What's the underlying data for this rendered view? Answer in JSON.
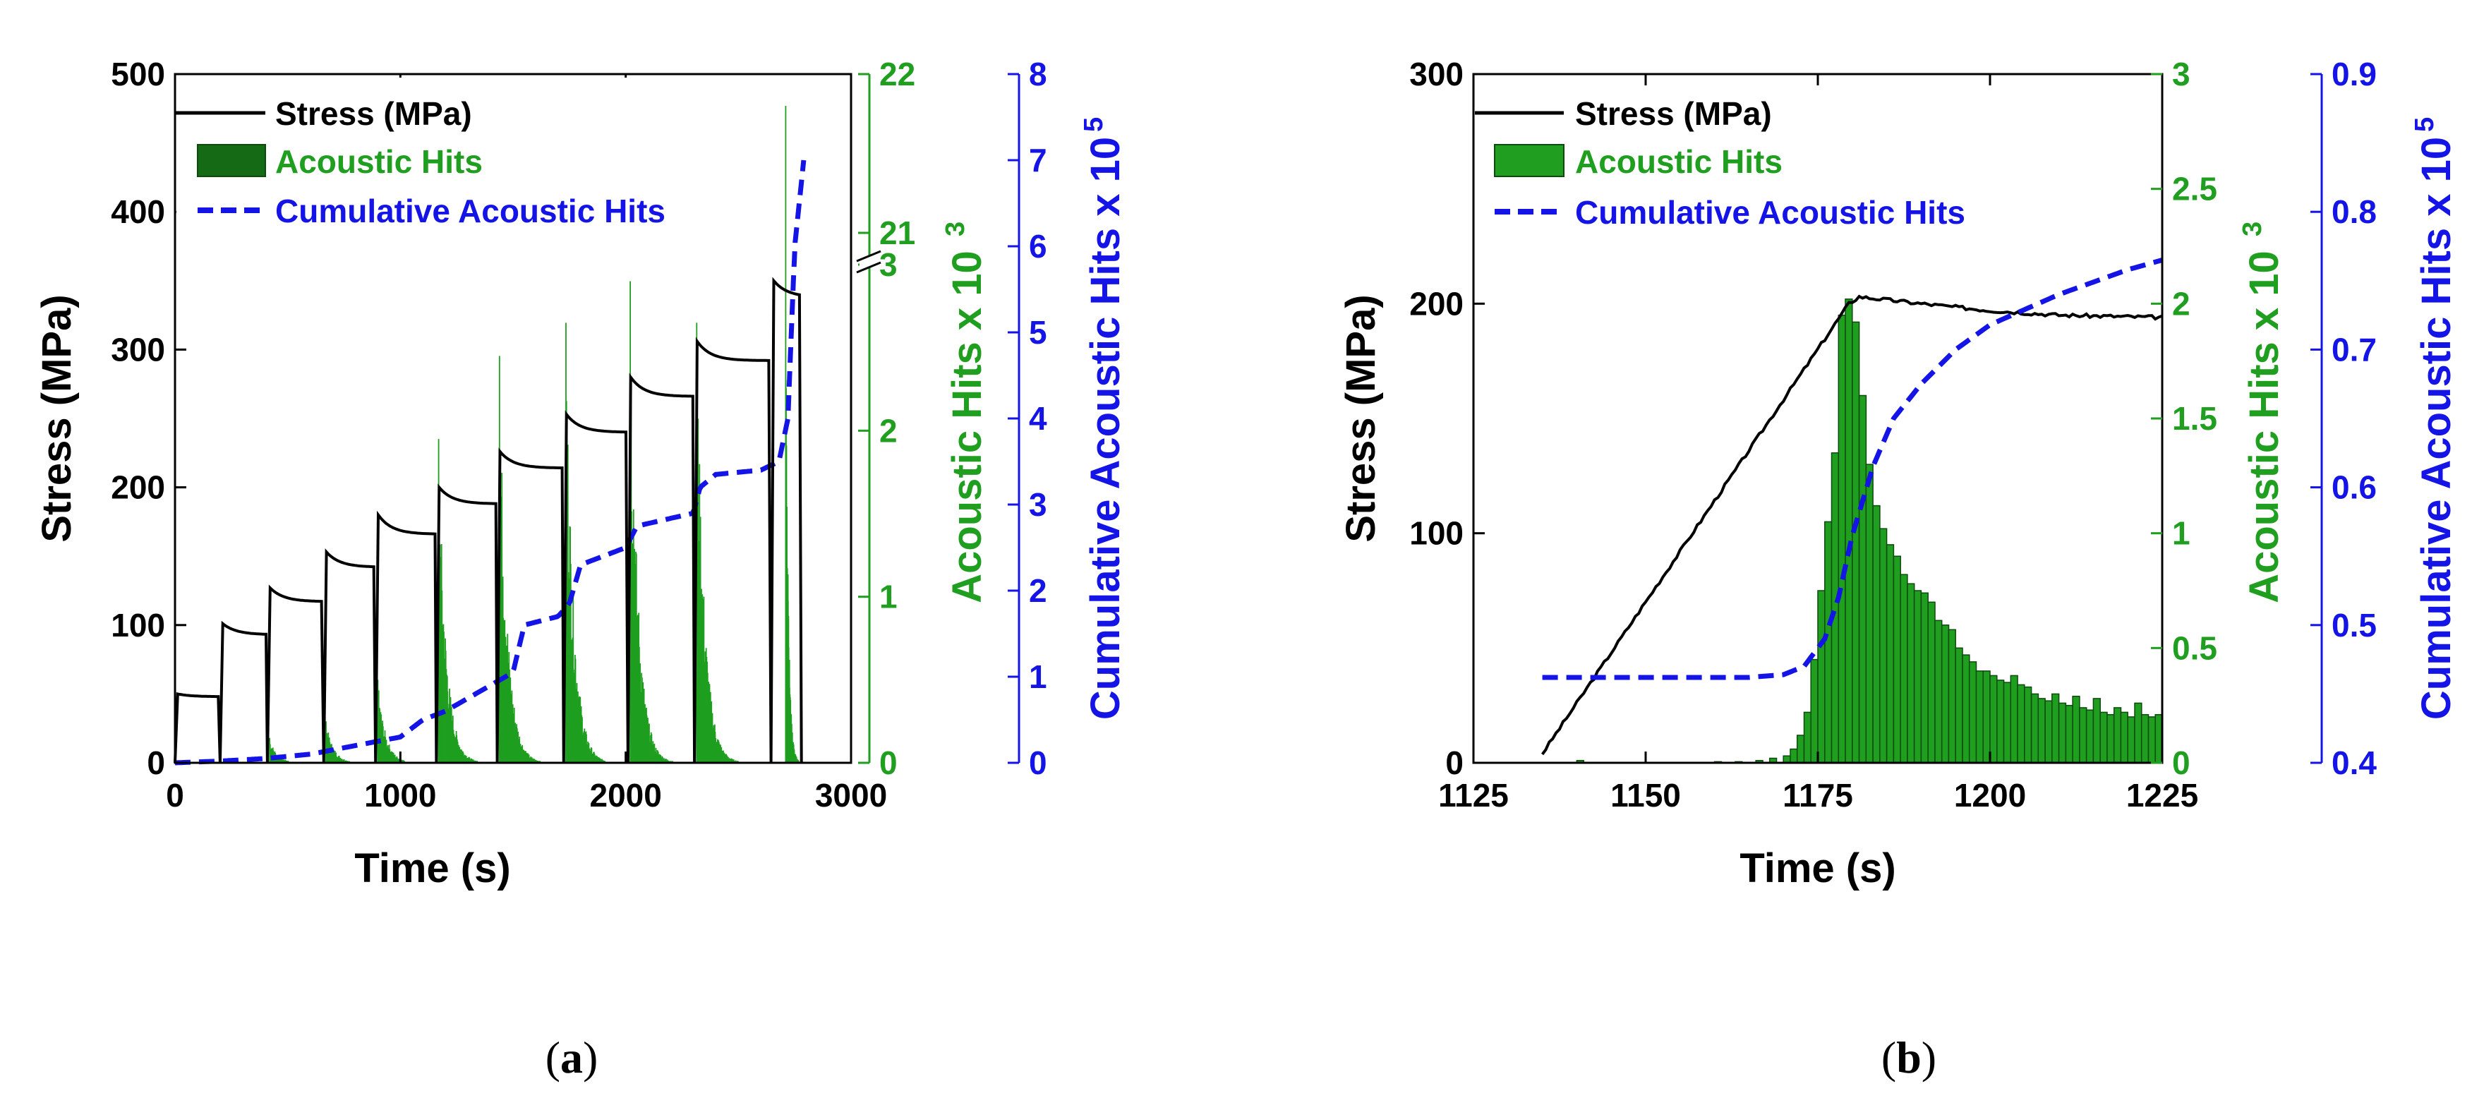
{
  "colors": {
    "stress": "#000000",
    "hits": "#1f9e1f",
    "hits_dark": "#156b15",
    "cumulative": "#1414e6",
    "axis": "#000000"
  },
  "chart_data": [
    {
      "id": "a",
      "type": "line+bar",
      "caption": "a",
      "xlabel": "Time (s)",
      "ylabel_left": "Stress (MPa)",
      "ylabel_mid": "Acoustic Hits x 10",
      "ylabel_mid_exp": "3",
      "ylabel_right": "Cumulative Acoustic Hits x 10",
      "ylabel_right_exp": "5",
      "xlim": [
        0,
        3000
      ],
      "xticks": [
        0,
        1000,
        2000,
        3000
      ],
      "xtick_labels": [
        "0",
        "1000",
        "2000",
        "3000"
      ],
      "ylim_left": [
        0,
        500
      ],
      "yticks_left": [
        0,
        100,
        200,
        300,
        400,
        500
      ],
      "ytick_labels_left": [
        "0",
        "100",
        "200",
        "300",
        "400",
        "500"
      ],
      "hits_axis": {
        "segments": [
          {
            "range": [
              0,
              3
            ],
            "ticks": [
              0,
              1,
              2,
              3
            ]
          },
          {
            "range": [
              21,
              22
            ],
            "ticks": [
              21,
              22
            ]
          }
        ],
        "tick_labels": [
          "0",
          "1",
          "2",
          "3",
          "21",
          "22"
        ],
        "break": "between 3 and 21"
      },
      "ylim_right": [
        0,
        8
      ],
      "yticks_right": [
        0,
        1,
        2,
        3,
        4,
        5,
        6,
        7,
        8
      ],
      "ytick_labels_right": [
        "0",
        "1",
        "2",
        "3",
        "4",
        "5",
        "6",
        "7",
        "8"
      ],
      "legend": [
        "Stress (MPa)",
        "Acoustic Hits",
        "Cumulative Acoustic Hits"
      ],
      "legend_position": "top-left",
      "stress_steps": [
        {
          "t0": 0,
          "t1": 195,
          "peak": 50,
          "plateau": 48
        },
        {
          "t0": 200,
          "t1": 405,
          "peak": 101,
          "plateau": 93
        },
        {
          "t0": 410,
          "t1": 655,
          "peak": 127,
          "plateau": 117
        },
        {
          "t0": 660,
          "t1": 885,
          "peak": 153,
          "plateau": 142
        },
        {
          "t0": 890,
          "t1": 1155,
          "peak": 180,
          "plateau": 166
        },
        {
          "t0": 1160,
          "t1": 1425,
          "peak": 200,
          "plateau": 188
        },
        {
          "t0": 1430,
          "t1": 1720,
          "peak": 226,
          "plateau": 214
        },
        {
          "t0": 1725,
          "t1": 2005,
          "peak": 253,
          "plateau": 240
        },
        {
          "t0": 2010,
          "t1": 2300,
          "peak": 280,
          "plateau": 266
        },
        {
          "t0": 2305,
          "t1": 2640,
          "peak": 306,
          "plateau": 292
        },
        {
          "t0": 2645,
          "t1": 2775,
          "peak": 350,
          "plateau": 338
        }
      ],
      "hit_bursts": [
        {
          "t": 420,
          "peak": 0.15
        },
        {
          "t": 670,
          "peak": 0.25
        },
        {
          "t": 900,
          "peak": 0.5
        },
        {
          "t": 1170,
          "peak": 1.95
        },
        {
          "t": 1440,
          "peak": 2.45
        },
        {
          "t": 1735,
          "peak": 2.65
        },
        {
          "t": 2020,
          "peak": 2.9
        },
        {
          "t": 2315,
          "peak": 2.65
        },
        {
          "t": 2710,
          "peak": 21.8
        }
      ],
      "cumulative": {
        "t": [
          0,
          200,
          400,
          600,
          800,
          1000,
          1100,
          1200,
          1300,
          1400,
          1500,
          1550,
          1700,
          1750,
          1800,
          1950,
          2000,
          2050,
          2300,
          2330,
          2400,
          2600,
          2680,
          2720,
          2750,
          2790
        ],
        "v": [
          0,
          0.02,
          0.05,
          0.1,
          0.2,
          0.3,
          0.5,
          0.6,
          0.75,
          0.9,
          1.05,
          1.6,
          1.7,
          1.85,
          2.3,
          2.45,
          2.5,
          2.75,
          2.9,
          3.2,
          3.35,
          3.4,
          3.5,
          4.0,
          6.0,
          7.0
        ]
      }
    },
    {
      "id": "b",
      "type": "line+bar",
      "caption": "b",
      "xlabel": "Time (s)",
      "ylabel_left": "Stress (MPa)",
      "ylabel_mid": "Acoustic Hits x 10",
      "ylabel_mid_exp": "3",
      "ylabel_right": "Cumulative Acoustic Hits x 10",
      "ylabel_right_exp": "5",
      "xlim": [
        1125,
        1225
      ],
      "xticks": [
        1125,
        1150,
        1175,
        1200,
        1225
      ],
      "xtick_labels": [
        "1125",
        "1150",
        "1175",
        "1200",
        "1225"
      ],
      "ylim_left": [
        0,
        300
      ],
      "yticks_left": [
        0,
        100,
        200,
        300
      ],
      "ytick_labels_left": [
        "0",
        "100",
        "200",
        "300"
      ],
      "ylim_mid": [
        0,
        3
      ],
      "yticks_mid": [
        0,
        0.5,
        1,
        1.5,
        2,
        2.5,
        3
      ],
      "ytick_labels_mid": [
        "0",
        "0.5",
        "1",
        "1.5",
        "2",
        "2.5",
        "3"
      ],
      "ylim_right": [
        0.4,
        0.9
      ],
      "yticks_right": [
        0.4,
        0.5,
        0.6,
        0.7,
        0.8,
        0.9
      ],
      "ytick_labels_right": [
        "0.4",
        "0.5",
        "0.6",
        "0.7",
        "0.8",
        "0.9"
      ],
      "legend": [
        "Stress (MPa)",
        "Acoustic Hits",
        "Cumulative Acoustic Hits"
      ],
      "legend_position": "top-left",
      "stress": {
        "t": [
          1135,
          1179.5,
          1181,
          1190,
          1200,
          1210,
          1225
        ],
        "v": [
          4,
          200,
          203,
          200,
          197,
          195,
          194
        ]
      },
      "histogram": {
        "start": 1170,
        "bin_width": 1,
        "values": [
          0.03,
          0.06,
          0.12,
          0.22,
          0.45,
          0.75,
          1.05,
          1.35,
          1.95,
          2.02,
          1.92,
          1.6,
          1.3,
          1.12,
          1.02,
          0.95,
          0.9,
          0.82,
          0.78,
          0.75,
          0.74,
          0.7,
          0.62,
          0.6,
          0.58,
          0.5,
          0.47,
          0.44,
          0.4,
          0.4,
          0.38,
          0.36,
          0.35,
          0.38,
          0.34,
          0.33,
          0.3,
          0.28,
          0.27,
          0.3,
          0.26,
          0.25,
          0.29,
          0.24,
          0.23,
          0.28,
          0.22,
          0.21,
          0.24,
          0.22,
          0.2,
          0.26,
          0.21,
          0.2,
          0.21
        ],
        "early": [
          {
            "t": 1140,
            "v": 0.01
          },
          {
            "t": 1160,
            "v": 0.005
          },
          {
            "t": 1163,
            "v": 0.005
          },
          {
            "t": 1166,
            "v": 0.01
          },
          {
            "t": 1168,
            "v": 0.02
          }
        ]
      },
      "cumulative": {
        "t": [
          1135,
          1165,
          1170,
          1173,
          1176,
          1178,
          1180,
          1183,
          1186,
          1190,
          1195,
          1200,
          1210,
          1220,
          1225
        ],
        "v": [
          0.462,
          0.462,
          0.464,
          0.47,
          0.49,
          0.52,
          0.565,
          0.615,
          0.65,
          0.675,
          0.7,
          0.718,
          0.74,
          0.758,
          0.765
        ]
      }
    }
  ]
}
